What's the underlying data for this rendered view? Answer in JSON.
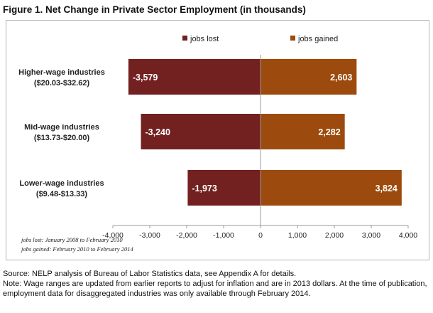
{
  "figure_title": "Figure 1. Net Change in Private Sector Employment (in thousands)",
  "colors": {
    "jobs_lost": "#722020",
    "jobs_gained": "#9c4a0d",
    "axis": "#999999",
    "bar_text": "#ffffff"
  },
  "chart_data": {
    "type": "bar",
    "orientation": "horizontal",
    "stacked": "diverging",
    "title": "Figure 1. Net Change in Private Sector Employment (in thousands)",
    "categories": [
      {
        "name": "Higher-wage industries",
        "range": "($20.03-$32.62)"
      },
      {
        "name": "Mid-wage industries",
        "range": "($13.73-$20.00)"
      },
      {
        "name": "Lower-wage industries",
        "range": "($9.48-$13.33)"
      }
    ],
    "series": [
      {
        "name": "jobs lost",
        "values": [
          -3579,
          -3240,
          -1973
        ],
        "labels": [
          "-3,579",
          "-3,240",
          "-1,973"
        ]
      },
      {
        "name": "jobs gained",
        "values": [
          2603,
          2282,
          3824
        ],
        "labels": [
          "2,603",
          "2,282",
          "3,824"
        ]
      }
    ],
    "xlim": [
      -4000,
      4000
    ],
    "xticks": [
      -4000,
      -3000,
      -2000,
      -1000,
      0,
      1000,
      2000,
      3000,
      4000
    ],
    "xtick_labels": [
      "-4,000",
      "-3,000",
      "-2,000",
      "-1,000",
      "0",
      "1,000",
      "2,000",
      "3,000",
      "4,000"
    ],
    "legend_position": "top",
    "grid": false
  },
  "notes": {
    "jobs_lost_period": "jobs lost: January 2008 to February 2010",
    "jobs_gained_period": "jobs gained: February 2010 to February 2014"
  },
  "source": {
    "line1": "Source: NELP analysis of Bureau of Labor Statistics data, see Appendix A for details.",
    "line2": "Note: Wage ranges are updated from earlier reports to adjust for inflation and are in 2013 dollars. At the time of publication, employment data for disaggregated industries was only available through February 2014."
  }
}
